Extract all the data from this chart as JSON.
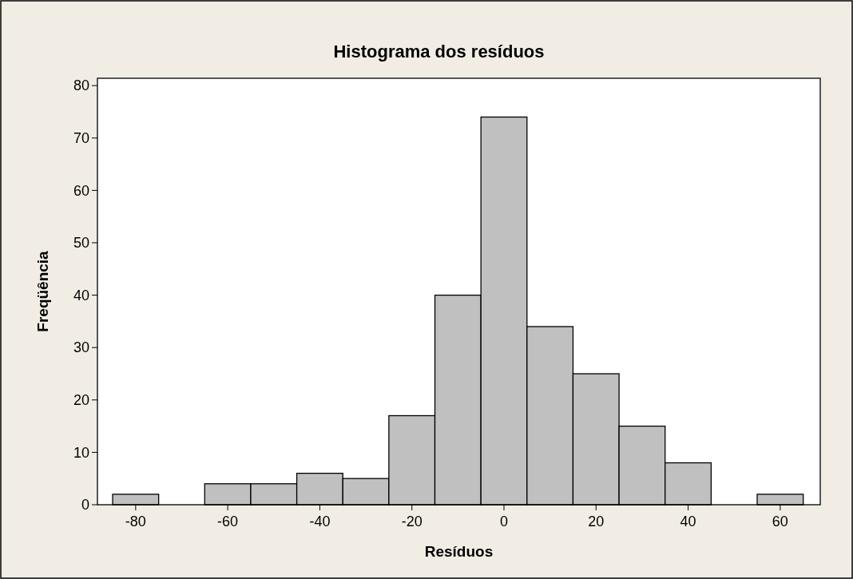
{
  "chart_data": {
    "type": "histogram",
    "title": "Histograma dos resíduos",
    "xlabel": "Resíduos",
    "ylabel": "Freqüência",
    "bins": [
      -85,
      -75,
      -65,
      -55,
      -45,
      -35,
      -25,
      -15,
      -5,
      5,
      15,
      25,
      35,
      45,
      55,
      65
    ],
    "values": [
      2,
      0,
      4,
      4,
      6,
      5,
      17,
      40,
      74,
      34,
      25,
      15,
      8,
      0,
      2
    ],
    "color": "#c0c0c0",
    "xlim": [
      -88.3,
      68.7
    ],
    "xticks": [
      -80,
      -60,
      -40,
      -20,
      0,
      20,
      40,
      60
    ],
    "ylim": [
      0,
      81.4
    ],
    "yticks": [
      0,
      10,
      20,
      30,
      40,
      50,
      60,
      70,
      80
    ],
    "grid": false
  }
}
